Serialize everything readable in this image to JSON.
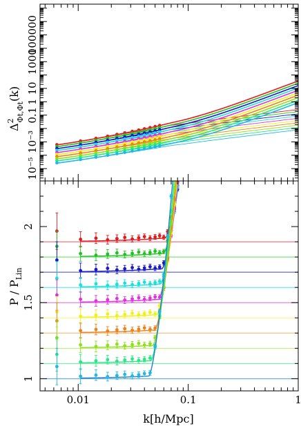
{
  "chart_data": [
    {
      "type": "line",
      "panel": "top",
      "ylabel_main": "Δ",
      "ylabel_sup": "2",
      "ylabel_sub": "Φt,Φt",
      "ylabel_tail": "(k)",
      "xscale": "log",
      "yscale": "log",
      "xlim": [
        0.0045,
        1.0
      ],
      "ylim": [
        1.2e-06,
        20000000
      ],
      "grid": false,
      "yticks": [
        {
          "value": 1e-05,
          "label": "10⁻⁵"
        },
        {
          "value": 0.001,
          "label": "10⁻³"
        },
        {
          "value": 0.1,
          "label": "0.1"
        },
        {
          "value": 1,
          "label": "1"
        },
        {
          "value": 10,
          "label": "10"
        },
        {
          "value": 1000,
          "label": "1000"
        },
        {
          "value": 100000,
          "label": "100000"
        }
      ],
      "series_colors": [
        "#e31a1c",
        "#22c022",
        "#1818c8",
        "#18e0e0",
        "#e030e0",
        "#f0f018",
        "#f08018",
        "#90e018",
        "#28e880",
        "#20b8e8"
      ],
      "series_params": [
        {
          "amp": 8e-05,
          "tail": 0.08
        },
        {
          "amp": 5.4e-05,
          "tail": 0.06
        },
        {
          "amp": 3.6e-05,
          "tail": 0.043
        },
        {
          "amp": 2.4e-05,
          "tail": 0.031
        },
        {
          "amp": 1.6e-05,
          "tail": 0.022
        },
        {
          "amp": 1.05e-05,
          "tail": 0.0155
        },
        {
          "amp": 6.9e-06,
          "tail": 0.011
        },
        {
          "amp": 4.5e-06,
          "tail": 0.0077
        },
        {
          "amp": 2.9e-06,
          "tail": 0.0054
        },
        {
          "amp": 1.9e-06,
          "tail": 0.0037
        }
      ],
      "point_x": [
        0.0064,
        0.0105,
        0.0145,
        0.0185,
        0.0225,
        0.0265,
        0.031,
        0.0355,
        0.04,
        0.045,
        0.05,
        0.055
      ]
    },
    {
      "type": "scatter",
      "panel": "bottom",
      "ylabel_main": "P / P",
      "ylabel_sub": "Lin",
      "xlabel": "k[h/Mpc]",
      "xscale": "log",
      "xlim": [
        0.0045,
        1.0
      ],
      "ylim": [
        0.92,
        2.3
      ],
      "grid": false,
      "xticks": [
        {
          "value": 0.01,
          "label": "0.01"
        },
        {
          "value": 0.1,
          "label": "0.1"
        },
        {
          "value": 1,
          "label": "1"
        }
      ],
      "yticks": [
        {
          "value": 1,
          "label": "1"
        },
        {
          "value": 1.5,
          "label": "1.5"
        },
        {
          "value": 2,
          "label": "2"
        }
      ],
      "baselines": [
        1.9,
        1.8,
        1.7,
        1.6,
        1.5,
        1.4,
        1.3,
        1.2,
        1.1,
        1.0
      ],
      "series_colors": [
        "#e31a1c",
        "#22c022",
        "#1818c8",
        "#18e0e0",
        "#e030e0",
        "#f0f018",
        "#f08018",
        "#90e018",
        "#28e880",
        "#20b8e8"
      ],
      "line_colors": [
        "#e31a1c",
        "#22c022",
        "#1818c8",
        "#18e0e0",
        "#e030e0",
        "#f0f018",
        "#f08018",
        "#90e018",
        "#28e880",
        "#2080d0"
      ],
      "hline_colors": [
        "#f05060",
        "#50e050",
        "#4040d0",
        "#40e8e8",
        "#e860e8",
        "#f8f870",
        "#f8b060",
        "#b8f060",
        "#60f0a0",
        "#40a0e8"
      ],
      "onset_k": [
        0.062,
        0.06,
        0.058,
        0.056,
        0.054,
        0.052,
        0.05,
        0.048,
        0.046,
        0.044
      ],
      "growth": [
        1.9,
        2.0,
        2.1,
        2.2,
        2.3,
        2.4,
        2.5,
        2.6,
        2.7,
        2.8
      ],
      "point_x": [
        0.0064,
        0.0105,
        0.0145,
        0.0185,
        0.0225,
        0.0265,
        0.031,
        0.0355,
        0.04,
        0.045,
        0.05,
        0.055,
        0.06,
        0.065,
        0.07,
        0.075,
        0.08
      ],
      "first_point_offsets": [
        0.07,
        0.07,
        0.08,
        0.06,
        0.05,
        0.04,
        0.08,
        0.07,
        0.06,
        0.08
      ],
      "first_point_err": [
        0.12,
        0.1,
        0.12,
        0.11,
        0.1,
        0.1,
        0.12,
        0.11,
        0.11,
        0.12
      ]
    }
  ]
}
